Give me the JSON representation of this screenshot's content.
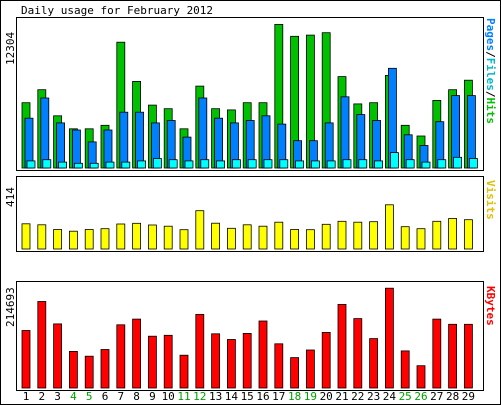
{
  "title": "Daily usage for February 2012",
  "colors": {
    "background": "#ffffff",
    "plot_background": "#ffffff",
    "pages": "#0080ff",
    "files": "#00ffff",
    "hits": "#00c000",
    "visits": "#ffff00",
    "kbytes": "#ff0000",
    "frame": "#000000",
    "weekday_label": "#000000",
    "weekend_label": "#00a000"
  },
  "chart_data": [
    {
      "type": "bar",
      "title": "Daily usage for February 2012",
      "panel": "hits-files-pages",
      "ymax_label": "12304",
      "ylim": [
        0,
        12304
      ],
      "legend": "Pages/Files/Hits",
      "legend_parts": [
        "Pages",
        "/",
        "Files",
        "/",
        "Hits"
      ],
      "categories": [
        "1",
        "2",
        "3",
        "4",
        "5",
        "6",
        "7",
        "8",
        "9",
        "10",
        "11",
        "12",
        "13",
        "14",
        "15",
        "16",
        "17",
        "18",
        "19",
        "20",
        "21",
        "22",
        "23",
        "24",
        "25",
        "26",
        "27",
        "28",
        "29"
      ],
      "weekend_days": [
        "4",
        "5",
        "11",
        "12",
        "18",
        "19",
        "25",
        "26"
      ],
      "series": [
        {
          "name": "Hits",
          "values": [
            5500,
            6600,
            4400,
            3300,
            3300,
            3600,
            10600,
            7300,
            5300,
            5000,
            3300,
            6900,
            5000,
            4900,
            5500,
            5500,
            12100,
            11100,
            11200,
            11400,
            7700,
            5400,
            5500,
            7800,
            3600,
            2700,
            5700,
            6600,
            7400
          ]
        },
        {
          "name": "Files",
          "values": [
            4200,
            5900,
            3800,
            3200,
            2200,
            3200,
            4700,
            4700,
            3800,
            4000,
            2600,
            5900,
            4200,
            3800,
            4000,
            4400,
            3700,
            2300,
            2300,
            3800,
            6000,
            4500,
            4000,
            8400,
            2800,
            1900,
            3900,
            6100,
            6100
          ]
        },
        {
          "name": "Pages",
          "values": [
            600,
            700,
            500,
            400,
            400,
            500,
            500,
            600,
            800,
            700,
            600,
            700,
            600,
            700,
            700,
            700,
            700,
            600,
            600,
            600,
            700,
            700,
            600,
            1300,
            700,
            500,
            700,
            900,
            800
          ]
        }
      ]
    },
    {
      "type": "bar",
      "panel": "visits",
      "ymax_label": "414",
      "ylim": [
        0,
        414
      ],
      "legend": "Visits",
      "categories": [
        "1",
        "2",
        "3",
        "4",
        "5",
        "6",
        "7",
        "8",
        "9",
        "10",
        "11",
        "12",
        "13",
        "14",
        "15",
        "16",
        "17",
        "18",
        "19",
        "20",
        "21",
        "22",
        "23",
        "24",
        "25",
        "26",
        "27",
        "28",
        "29"
      ],
      "series": [
        {
          "name": "Visits",
          "values": [
            151,
            145,
            117,
            107,
            117,
            122,
            150,
            154,
            144,
            137,
            116,
            230,
            155,
            124,
            145,
            137,
            161,
            117,
            116,
            148,
            166,
            161,
            164,
            265,
            134,
            122,
            166,
            183,
            176
          ]
        }
      ]
    },
    {
      "type": "bar",
      "panel": "kbytes",
      "ymax_label": "214693",
      "ylim": [
        0,
        214693
      ],
      "legend": "KBytes",
      "categories": [
        "1",
        "2",
        "3",
        "4",
        "5",
        "6",
        "7",
        "8",
        "9",
        "10",
        "11",
        "12",
        "13",
        "14",
        "15",
        "16",
        "17",
        "18",
        "19",
        "20",
        "21",
        "22",
        "23",
        "24",
        "25",
        "26",
        "27",
        "28",
        "29"
      ],
      "series": [
        {
          "name": "KBytes",
          "values": [
            121000,
            182000,
            135000,
            77000,
            67000,
            81000,
            133000,
            145000,
            109000,
            111000,
            69000,
            155000,
            114000,
            102000,
            115000,
            141000,
            93000,
            64000,
            80000,
            117000,
            176000,
            146000,
            104000,
            210000,
            78000,
            47000,
            145000,
            134000,
            134000
          ]
        }
      ]
    }
  ]
}
